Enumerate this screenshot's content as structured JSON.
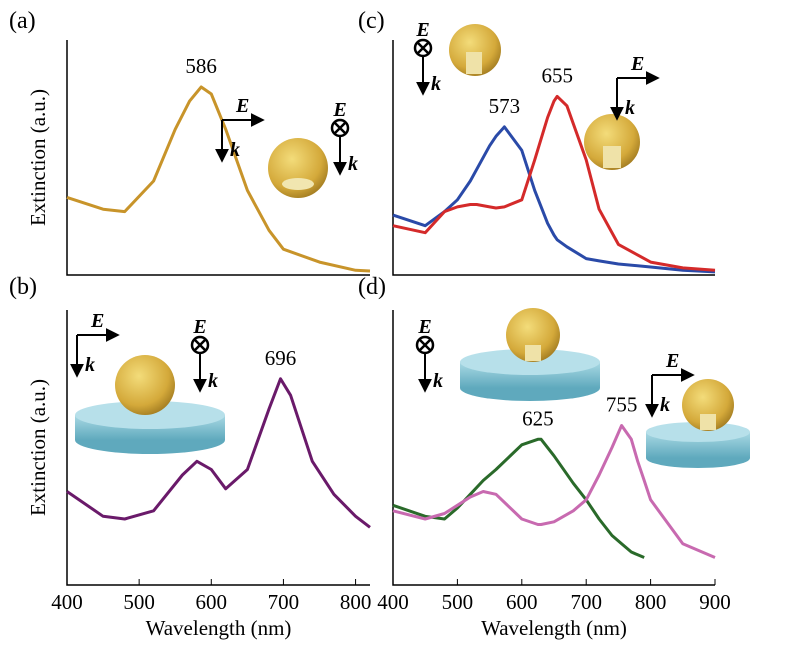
{
  "chart_data": [
    {
      "type": "line",
      "panel_label": "(a)",
      "ylabel": "Extinction (a.u.)",
      "xlim": [
        400,
        820
      ],
      "ylim": [
        0,
        1
      ],
      "x": [
        400,
        450,
        480,
        520,
        550,
        570,
        586,
        600,
        620,
        650,
        680,
        700,
        750,
        800,
        820
      ],
      "series": [
        {
          "name": null,
          "color": "#c8942a",
          "values": [
            0.33,
            0.28,
            0.27,
            0.4,
            0.62,
            0.74,
            0.8,
            0.77,
            0.62,
            0.36,
            0.19,
            0.11,
            0.055,
            0.02,
            0.017
          ]
        }
      ],
      "peaks": [
        {
          "x": 586,
          "y": 0.8
        }
      ],
      "polarization": [
        {
          "field": "E",
          "wave": "k",
          "kind": "arrow"
        },
        {
          "field": "E",
          "wave": "k",
          "kind": "cross"
        }
      ]
    },
    {
      "type": "line",
      "panel_label": "(c)",
      "xlim": [
        400,
        900
      ],
      "ylim": [
        0,
        1
      ],
      "x": [
        400,
        450,
        480,
        500,
        520,
        530,
        550,
        560,
        573,
        600,
        620,
        640,
        650,
        655,
        670,
        700,
        720,
        750,
        800,
        850,
        900
      ],
      "series": [
        {
          "name": null,
          "color": "#2a4aa8",
          "values": [
            0.255,
            0.21,
            0.27,
            0.32,
            0.4,
            0.45,
            0.55,
            0.59,
            0.63,
            0.53,
            0.36,
            0.22,
            0.17,
            0.15,
            0.12,
            0.07,
            0.06,
            0.047,
            0.034,
            0.02,
            0.013
          ]
        },
        {
          "name": null,
          "color": "#d42a2a",
          "values": [
            0.21,
            0.18,
            0.27,
            0.29,
            0.3,
            0.3,
            0.29,
            0.285,
            0.29,
            0.32,
            0.49,
            0.67,
            0.74,
            0.76,
            0.72,
            0.49,
            0.28,
            0.13,
            0.055,
            0.03,
            0.02
          ]
        }
      ],
      "peaks": [
        {
          "x": 573,
          "y": 0.63
        },
        {
          "x": 655,
          "y": 0.76
        }
      ],
      "polarization": [
        {
          "field": "E",
          "wave": "k",
          "kind": "cross"
        },
        {
          "field": "E",
          "wave": "k",
          "kind": "arrow"
        }
      ]
    },
    {
      "type": "line",
      "panel_label": "(b)",
      "ylabel": "Extinction (a.u.)",
      "xlabel": "Wavelength (nm)",
      "xlim": [
        400,
        820
      ],
      "ylim": [
        0,
        1
      ],
      "xticks": [
        400,
        500,
        600,
        700,
        800
      ],
      "x": [
        400,
        450,
        480,
        520,
        560,
        580,
        600,
        620,
        650,
        680,
        696,
        710,
        740,
        770,
        800,
        820
      ],
      "series": [
        {
          "name": null,
          "color": "#6a1a6a",
          "values": [
            0.34,
            0.25,
            0.24,
            0.27,
            0.4,
            0.45,
            0.42,
            0.35,
            0.42,
            0.64,
            0.75,
            0.69,
            0.45,
            0.33,
            0.25,
            0.21
          ]
        }
      ],
      "peaks": [
        {
          "x": 696,
          "y": 0.75
        }
      ],
      "polarization": [
        {
          "field": "E",
          "wave": "k",
          "kind": "arrow"
        },
        {
          "field": "E",
          "wave": "k",
          "kind": "cross"
        }
      ]
    },
    {
      "type": "line",
      "panel_label": "(d)",
      "xlabel": "Wavelength (nm)",
      "xlim": [
        400,
        900
      ],
      "ylim": [
        0,
        1
      ],
      "xticks": [
        400,
        500,
        600,
        700,
        800,
        900
      ],
      "x": [
        400,
        450,
        480,
        500,
        520,
        540,
        560,
        600,
        625,
        630,
        650,
        680,
        700,
        720,
        740,
        755,
        770,
        780,
        790,
        800,
        850,
        900
      ],
      "series": [
        {
          "name": null,
          "color": "#2a6a2a",
          "values": [
            0.29,
            0.25,
            0.24,
            0.28,
            0.33,
            0.38,
            0.42,
            0.51,
            0.53,
            0.53,
            0.47,
            0.37,
            0.31,
            0.24,
            0.18,
            0.15,
            0.12,
            0.11,
            0.1,
            null,
            null,
            null
          ]
        },
        {
          "name": null,
          "color": "#c86ab0",
          "values": [
            0.27,
            0.24,
            0.26,
            0.29,
            0.32,
            0.34,
            0.33,
            0.24,
            0.22,
            0.22,
            0.23,
            0.27,
            0.31,
            0.4,
            0.5,
            0.58,
            0.53,
            0.45,
            0.38,
            0.31,
            0.15,
            0.1
          ]
        }
      ],
      "peaks": [
        {
          "x": 625,
          "y": 0.53
        },
        {
          "x": 755,
          "y": 0.58
        }
      ],
      "polarization": [
        {
          "field": "E",
          "wave": "k",
          "kind": "cross"
        },
        {
          "field": "E",
          "wave": "k",
          "kind": "arrow"
        }
      ]
    }
  ]
}
